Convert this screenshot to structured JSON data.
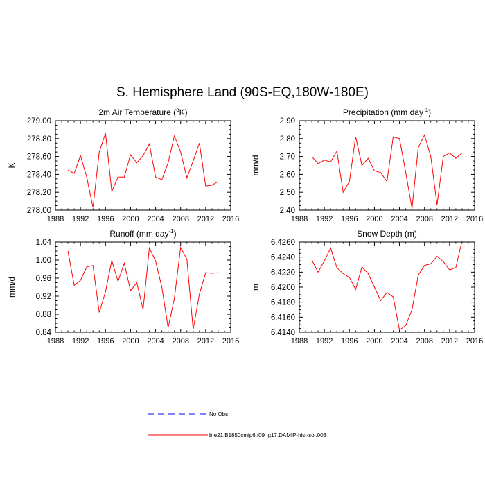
{
  "title": "S. Hemisphere Land (90S-EQ,180W-180E)",
  "colors": {
    "model": "#ff0000",
    "obs": "#0000ff",
    "axis": "#000000"
  },
  "legend": {
    "items": [
      {
        "label": "No Obs",
        "style": "dashed",
        "color": "#0000ff"
      },
      {
        "label": "b.e21.B1850cmip6.f09_g17.DAMIP-hist-sol.003",
        "style": "solid",
        "color": "#ff0000"
      }
    ]
  },
  "chart_data": [
    {
      "type": "line",
      "title_main": "2m Air Temperature (",
      "title_sup": "o",
      "title_tail": "K)",
      "ylabel": "K",
      "xlim": [
        1988,
        2016
      ],
      "ylim": [
        278.0,
        279.0
      ],
      "xticks": [
        "1988",
        "1992",
        "1996",
        "2000",
        "2004",
        "2008",
        "2012",
        "2016"
      ],
      "yticks": [
        "278.00",
        "278.20",
        "278.40",
        "278.60",
        "278.80",
        "279.00"
      ],
      "x": [
        1990,
        1991,
        1992,
        1993,
        1994,
        1995,
        1996,
        1997,
        1998,
        1999,
        2000,
        2001,
        2002,
        2003,
        2004,
        2005,
        2006,
        2007,
        2008,
        2009,
        2010,
        2011,
        2012,
        2013,
        2014
      ],
      "series": [
        {
          "values": [
            278.45,
            278.41,
            278.61,
            278.37,
            278.03,
            278.65,
            278.86,
            278.21,
            278.37,
            278.37,
            278.62,
            278.53,
            278.61,
            278.74,
            278.37,
            278.34,
            278.53,
            278.83,
            278.65,
            278.36,
            278.55,
            278.75,
            278.27,
            278.28,
            278.32
          ]
        }
      ]
    },
    {
      "type": "line",
      "title_main": "Precipitation (mm day",
      "title_sup": "-1",
      "title_tail": ")",
      "ylabel": "mm/d",
      "xlim": [
        1988,
        2016
      ],
      "ylim": [
        2.4,
        2.9
      ],
      "xticks": [
        "1988",
        "1992",
        "1996",
        "2000",
        "2004",
        "2008",
        "2012",
        "2016"
      ],
      "yticks": [
        "2.40",
        "2.50",
        "2.60",
        "2.70",
        "2.80",
        "2.90"
      ],
      "x": [
        1990,
        1991,
        1992,
        1993,
        1994,
        1995,
        1996,
        1997,
        1998,
        1999,
        2000,
        2001,
        2002,
        2003,
        2004,
        2005,
        2006,
        2007,
        2008,
        2009,
        2010,
        2011,
        2012,
        2013,
        2014
      ],
      "series": [
        {
          "values": [
            2.7,
            2.66,
            2.68,
            2.67,
            2.73,
            2.5,
            2.56,
            2.81,
            2.65,
            2.69,
            2.62,
            2.61,
            2.56,
            2.81,
            2.8,
            2.61,
            2.41,
            2.75,
            2.82,
            2.7,
            2.43,
            2.7,
            2.72,
            2.69,
            2.72
          ]
        }
      ]
    },
    {
      "type": "line",
      "title_main": "Runoff (mm day",
      "title_sup": "-1",
      "title_tail": ")",
      "ylabel": "mm/d",
      "xlim": [
        1988,
        2016
      ],
      "ylim": [
        0.84,
        1.04
      ],
      "xticks": [
        "1988",
        "1992",
        "1996",
        "2000",
        "2004",
        "2008",
        "2012",
        "2016"
      ],
      "yticks": [
        "0.84",
        "0.88",
        "0.92",
        "0.96",
        "1.00",
        "1.04"
      ],
      "x": [
        1990,
        1991,
        1992,
        1993,
        1994,
        1995,
        1996,
        1997,
        1998,
        1999,
        2000,
        2001,
        2002,
        2003,
        2004,
        2005,
        2006,
        2007,
        2008,
        2009,
        2010,
        2011,
        2012,
        2013,
        2014
      ],
      "series": [
        {
          "values": [
            1.02,
            0.944,
            0.955,
            0.985,
            0.988,
            0.884,
            0.93,
            0.999,
            0.953,
            0.993,
            0.932,
            0.95,
            0.89,
            1.027,
            0.998,
            0.94,
            0.85,
            0.915,
            1.028,
            1.002,
            0.846,
            0.925,
            0.972,
            0.971,
            0.972
          ]
        }
      ]
    },
    {
      "type": "line",
      "title_main": "Snow Depth (m)",
      "title_sup": "",
      "title_tail": "",
      "ylabel": "m",
      "xlim": [
        1988,
        2016
      ],
      "ylim": [
        6.414,
        6.426
      ],
      "xticks": [
        "1988",
        "1992",
        "1996",
        "2000",
        "2004",
        "2008",
        "2012",
        "2016"
      ],
      "yticks": [
        "6.4140",
        "6.4160",
        "6.4180",
        "6.4200",
        "6.4220",
        "6.4240",
        "6.4260"
      ],
      "x": [
        1990,
        1991,
        1992,
        1993,
        1994,
        1995,
        1996,
        1997,
        1998,
        1999,
        2000,
        2001,
        2002,
        2003,
        2004,
        2005,
        2006,
        2007,
        2008,
        2009,
        2010,
        2011,
        2012,
        2013,
        2014
      ],
      "series": [
        {
          "values": [
            6.4236,
            6.422,
            6.4235,
            6.4252,
            6.4226,
            6.4218,
            6.4213,
            6.4197,
            6.4227,
            6.4218,
            6.42,
            6.4182,
            6.4193,
            6.4187,
            6.4143,
            6.4149,
            6.417,
            6.4216,
            6.4229,
            6.4231,
            6.4241,
            6.4234,
            6.4223,
            6.4226,
            6.4262
          ]
        }
      ]
    }
  ]
}
